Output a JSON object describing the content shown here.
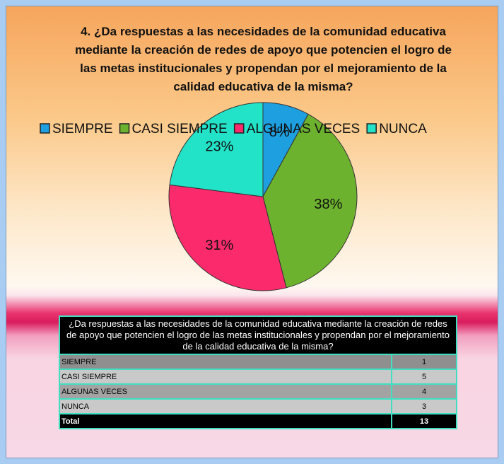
{
  "chart_data": {
    "type": "pie",
    "title": "4. ¿Da respuestas a las necesidades de la comunidad educativa mediante la creación de redes de apoyo que potencien el logro de las metas institucionales y propendan por el mejoramiento de la calidad educativa de la misma?",
    "categories": [
      "SIEMPRE",
      "CASI SIEMPRE",
      "ALGUNAS VECES",
      "NUNCA"
    ],
    "values": [
      8,
      38,
      31,
      23
    ],
    "value_labels": [
      "8%",
      "38%",
      "31%",
      "23%"
    ],
    "colors": [
      "#1e9fe0",
      "#6db22e",
      "#fb2a6c",
      "#22e2c8"
    ],
    "legend": "top"
  },
  "table": {
    "header": "¿Da respuestas a las necesidades de la comunidad educativa mediante la creación de redes de apoyo que potencien el logro de las metas institucionales y propendan por el mejoramiento de la calidad educativa de la misma?",
    "rows": [
      [
        "SIEMPRE",
        "1"
      ],
      [
        "CASI SIEMPRE",
        "5"
      ],
      [
        "ALGUNAS VECES",
        "4"
      ],
      [
        "NUNCA",
        "3"
      ]
    ],
    "total": [
      "Total",
      "13"
    ]
  }
}
